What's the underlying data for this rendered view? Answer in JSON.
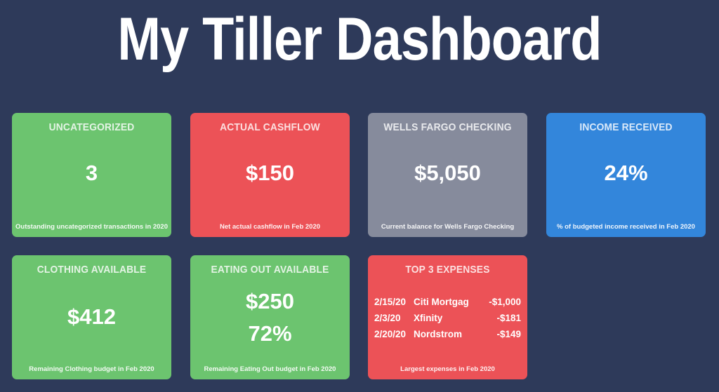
{
  "title": "My Tiller Dashboard",
  "colors": {
    "background": "#2e3a5a",
    "green": "#6cc46f",
    "red": "#ec5257",
    "gray": "#868b9c",
    "blue": "#3386db"
  },
  "cards": {
    "uncategorized": {
      "title": "UNCATEGORIZED",
      "value": "3",
      "foot": "Outstanding uncategorized transactions in 2020"
    },
    "cashflow": {
      "title": "ACTUAL CASHFLOW",
      "value": "$150",
      "foot": "Net actual cashflow in Feb 2020"
    },
    "checking": {
      "title": "WELLS FARGO CHECKING",
      "value": "$5,050",
      "foot": "Current balance for Wells Fargo Checking"
    },
    "income": {
      "title": "INCOME RECEIVED",
      "value": "24%",
      "foot": "% of budgeted income received in Feb 2020"
    },
    "clothing": {
      "title": "CLOTHING AVAILABLE",
      "value": "$412",
      "foot": "Remaining Clothing budget in Feb 2020"
    },
    "eating": {
      "title": "EATING OUT AVAILABLE",
      "value": "$250",
      "value2": "72%",
      "foot": "Remaining Eating Out budget in Feb 2020"
    },
    "expenses": {
      "title": "TOP 3 EXPENSES",
      "rows": [
        {
          "date": "2/15/20",
          "name": "Citi Mortgag",
          "amount": "-$1,000"
        },
        {
          "date": "2/3/20",
          "name": "Xfinity",
          "amount": "-$181"
        },
        {
          "date": "2/20/20",
          "name": "Nordstrom",
          "amount": "-$149"
        }
      ],
      "foot": "Largest expenses in Feb 2020"
    }
  }
}
